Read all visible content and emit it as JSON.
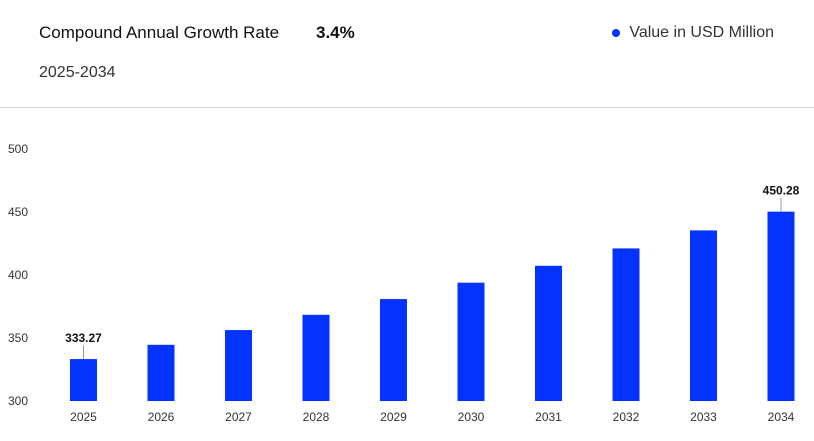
{
  "header": {
    "cagr_label": "Compound Annual Growth Rate",
    "cagr_value": "3.4%",
    "period": "2025-2034",
    "legend_label": "Value in USD Million"
  },
  "colors": {
    "bar": "#0433ff",
    "leader": "#999999"
  },
  "chart_data": {
    "type": "bar",
    "title": "",
    "xlabel": "",
    "ylabel": "",
    "categories": [
      "2025",
      "2026",
      "2027",
      "2028",
      "2029",
      "2030",
      "2031",
      "2032",
      "2033",
      "2034"
    ],
    "series": [
      {
        "name": "Value in USD Million",
        "values": [
          333.27,
          344.6,
          356.3,
          368.4,
          380.9,
          393.9,
          407.3,
          421.1,
          435.4,
          450.28
        ]
      }
    ],
    "data_labels": [
      {
        "index": 0,
        "text": "333.27"
      },
      {
        "index": 9,
        "text": "450.28"
      }
    ],
    "ylim": [
      300,
      500
    ],
    "yticks": [
      300,
      350,
      400,
      450,
      500
    ],
    "grid": false,
    "legend_position": "top-right"
  }
}
